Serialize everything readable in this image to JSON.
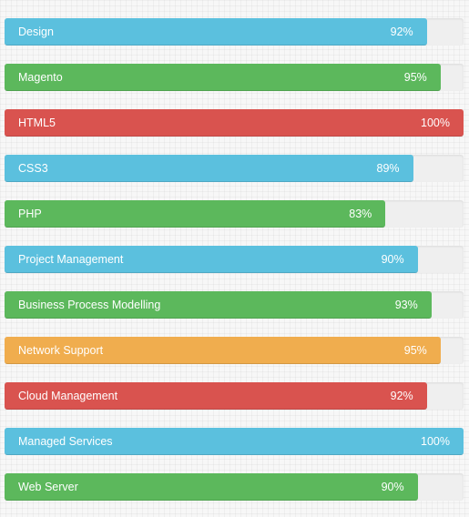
{
  "skills": [
    {
      "label": "Design",
      "percent_text": "92%",
      "value": 92,
      "color": "#5bc0de"
    },
    {
      "label": "Magento",
      "percent_text": "95%",
      "value": 95,
      "color": "#5cb85c"
    },
    {
      "label": "HTML5",
      "percent_text": "100%",
      "value": 100,
      "color": "#d9534f"
    },
    {
      "label": "CSS3",
      "percent_text": "89%",
      "value": 89,
      "color": "#5bc0de"
    },
    {
      "label": "PHP",
      "percent_text": "83%",
      "value": 83,
      "color": "#5cb85c"
    },
    {
      "label": "Project Management",
      "percent_text": "90%",
      "value": 90,
      "color": "#5bc0de"
    },
    {
      "label": "Business Process Modelling",
      "percent_text": "93%",
      "value": 93,
      "color": "#5cb85c"
    },
    {
      "label": "Network Support",
      "percent_text": "95%",
      "value": 95,
      "color": "#f0ad4e"
    },
    {
      "label": "Cloud Management",
      "percent_text": "92%",
      "value": 92,
      "color": "#d9534f"
    },
    {
      "label": "Managed Services",
      "percent_text": "100%",
      "value": 100,
      "color": "#5bc0de"
    },
    {
      "label": "Web Server",
      "percent_text": "90%",
      "value": 90,
      "color": "#5cb85c"
    }
  ]
}
